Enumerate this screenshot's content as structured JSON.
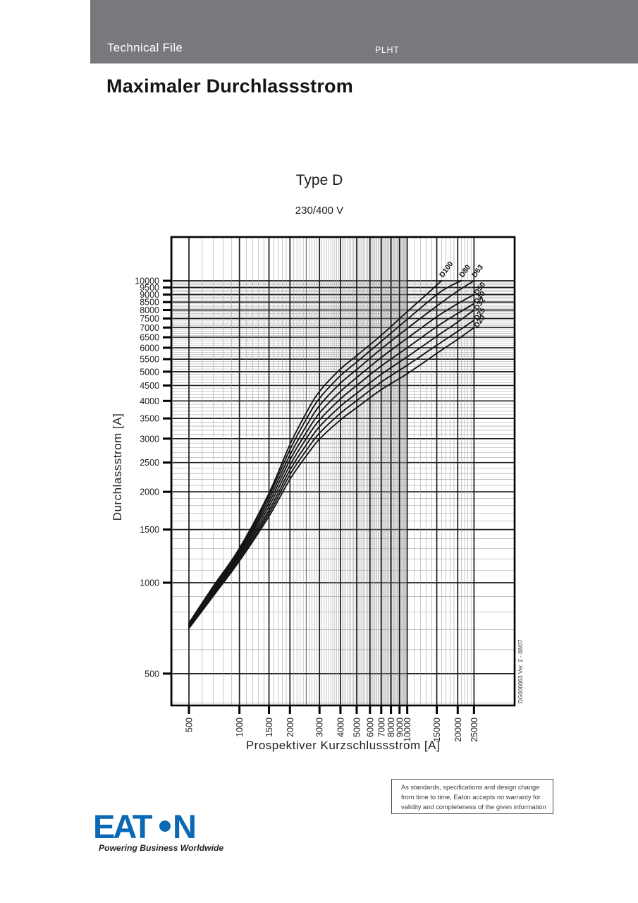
{
  "header": {
    "title": "Technical File",
    "product": "PLHT"
  },
  "page_title": "Maximaler Durchlassstrom",
  "chart_data": {
    "type": "line",
    "title": "Type D",
    "subtitle": "230/400 V",
    "xlabel": "Prospektiver Kurzschlussstrom [A]",
    "ylabel": "Durchlassstrom  [A]",
    "x_scale": "log",
    "y_scale": "log",
    "x_domain": [
      393,
      43650
    ],
    "y_domain": [
      392,
      13960
    ],
    "x_ticks": [
      500,
      1000,
      1500,
      2000,
      3000,
      4000,
      5000,
      6000,
      7000,
      8000,
      9000,
      10000,
      15000,
      20000,
      25000
    ],
    "y_ticks": [
      500,
      1000,
      1500,
      2000,
      2500,
      3000,
      3500,
      4000,
      4500,
      5000,
      5500,
      6000,
      6500,
      7000,
      7500,
      8000,
      8500,
      9000,
      9500,
      10000
    ],
    "grid": "log-log graph paper, minor lines every 100 A below 10000, every 1000 A above",
    "legend_position": "curve end labels, rotated, top right",
    "watermark": "DG000063  Ver. 2 - 08/07",
    "series": [
      {
        "name": "D100",
        "points": [
          [
            500,
            735
          ],
          [
            700,
            975
          ],
          [
            1000,
            1300
          ],
          [
            1500,
            1980
          ],
          [
            2000,
            2870
          ],
          [
            2500,
            3650
          ],
          [
            3000,
            4300
          ],
          [
            4000,
            5100
          ],
          [
            5000,
            5650
          ],
          [
            7000,
            6600
          ],
          [
            10000,
            7900
          ],
          [
            13000,
            9000
          ],
          [
            16000,
            10000
          ]
        ]
      },
      {
        "name": "D80",
        "points": [
          [
            500,
            730
          ],
          [
            700,
            965
          ],
          [
            1000,
            1285
          ],
          [
            1500,
            1940
          ],
          [
            2000,
            2760
          ],
          [
            2500,
            3480
          ],
          [
            3000,
            4080
          ],
          [
            4000,
            4850
          ],
          [
            5000,
            5380
          ],
          [
            7000,
            6300
          ],
          [
            10000,
            7450
          ],
          [
            15000,
            9000
          ],
          [
            18000,
            9600
          ],
          [
            21000,
            10000
          ]
        ]
      },
      {
        "name": "D63",
        "points": [
          [
            500,
            726
          ],
          [
            700,
            955
          ],
          [
            1000,
            1265
          ],
          [
            1500,
            1890
          ],
          [
            2000,
            2650
          ],
          [
            2500,
            3300
          ],
          [
            3000,
            3860
          ],
          [
            4000,
            4580
          ],
          [
            5000,
            5080
          ],
          [
            7000,
            5950
          ],
          [
            10000,
            6950
          ],
          [
            15000,
            8250
          ],
          [
            20000,
            9250
          ],
          [
            25000,
            10000
          ]
        ]
      },
      {
        "name": "D50",
        "points": [
          [
            500,
            722
          ],
          [
            700,
            945
          ],
          [
            1000,
            1250
          ],
          [
            1500,
            1840
          ],
          [
            2000,
            2550
          ],
          [
            2500,
            3140
          ],
          [
            3000,
            3650
          ],
          [
            4000,
            4300
          ],
          [
            5000,
            4780
          ],
          [
            7000,
            5570
          ],
          [
            10000,
            6450
          ],
          [
            15000,
            7600
          ],
          [
            20000,
            8400
          ],
          [
            25000,
            9000
          ]
        ]
      },
      {
        "name": "D40",
        "points": [
          [
            500,
            718
          ],
          [
            700,
            935
          ],
          [
            1000,
            1230
          ],
          [
            1500,
            1790
          ],
          [
            2000,
            2450
          ],
          [
            2500,
            3000
          ],
          [
            3000,
            3460
          ],
          [
            4000,
            4060
          ],
          [
            5000,
            4500
          ],
          [
            7000,
            5220
          ],
          [
            10000,
            6000
          ],
          [
            15000,
            7050
          ],
          [
            20000,
            7800
          ],
          [
            25000,
            8400
          ]
        ]
      },
      {
        "name": "D32",
        "points": [
          [
            500,
            714
          ],
          [
            700,
            925
          ],
          [
            1000,
            1215
          ],
          [
            1500,
            1740
          ],
          [
            2000,
            2360
          ],
          [
            2500,
            2860
          ],
          [
            3000,
            3290
          ],
          [
            4000,
            3840
          ],
          [
            5000,
            4240
          ],
          [
            7000,
            4900
          ],
          [
            10000,
            5600
          ],
          [
            15000,
            6550
          ],
          [
            20000,
            7300
          ],
          [
            25000,
            8000
          ]
        ]
      },
      {
        "name": "D25",
        "points": [
          [
            500,
            710
          ],
          [
            700,
            915
          ],
          [
            1000,
            1195
          ],
          [
            1500,
            1700
          ],
          [
            2000,
            2280
          ],
          [
            2500,
            2740
          ],
          [
            3000,
            3130
          ],
          [
            4000,
            3640
          ],
          [
            5000,
            4010
          ],
          [
            7000,
            4620
          ],
          [
            10000,
            5250
          ],
          [
            15000,
            6120
          ],
          [
            20000,
            6800
          ],
          [
            25000,
            7400
          ]
        ]
      },
      {
        "name": "D20",
        "points": [
          [
            500,
            706
          ],
          [
            700,
            905
          ],
          [
            1000,
            1180
          ],
          [
            1500,
            1660
          ],
          [
            2000,
            2200
          ],
          [
            2500,
            2630
          ],
          [
            3000,
            2990
          ],
          [
            4000,
            3460
          ],
          [
            5000,
            3800
          ],
          [
            7000,
            4360
          ],
          [
            10000,
            4920
          ],
          [
            15000,
            5750
          ],
          [
            20000,
            6400
          ],
          [
            25000,
            7000
          ]
        ]
      }
    ]
  },
  "disclaimer": {
    "lines": [
      "As standards, specifications and design change",
      "from time to time, Eaton accepts no warranty for",
      "validity and completeness of the given information"
    ]
  },
  "logo": {
    "brand_left": "EAT",
    "brand_right": "N",
    "tagline": "Powering Business Worldwide",
    "brand_color": "#0a69b4",
    "tagline_color": "#222222"
  }
}
